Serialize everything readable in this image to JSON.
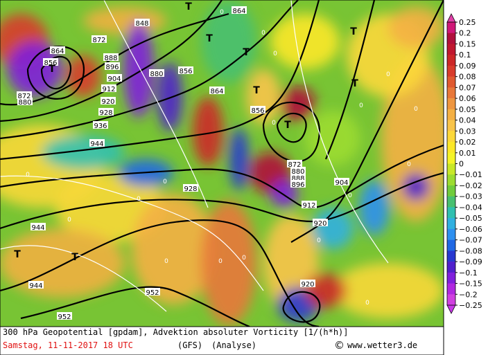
{
  "map": {
    "contour_labels": [
      "848",
      "872",
      "864",
      "856",
      "888",
      "896",
      "904",
      "880",
      "912",
      "920",
      "928",
      "936",
      "944",
      "864",
      "856",
      "872",
      "880",
      "888",
      "896",
      "904",
      "912",
      "920",
      "928",
      "944",
      "944",
      "952",
      "952",
      "920",
      "856",
      "864",
      "880",
      "872"
    ],
    "low_marks": [
      "T",
      "T",
      "T",
      "T",
      "T",
      "T",
      "T",
      "T",
      "T",
      "T"
    ],
    "zero_labels": [
      "0",
      "0",
      "0",
      "0",
      "0",
      "0",
      "0",
      "0",
      "0",
      "0",
      "0",
      "0",
      "0",
      "0",
      "0",
      "0",
      "0",
      "0"
    ]
  },
  "colorbar": {
    "labels": [
      "0.25",
      "0.2",
      "0.15",
      "0.1",
      "0.09",
      "0.08",
      "0.07",
      "0.06",
      "0.05",
      "0.04",
      "0.03",
      "0.02",
      "0.01",
      "0",
      "−0.01",
      "−0.02",
      "−0.03",
      "−0.04",
      "−0.05",
      "−0.06",
      "−0.07",
      "−0.08",
      "−0.09",
      "−0.1",
      "−0.15",
      "−0.2",
      "−0.25"
    ],
    "colors": [
      "#d01878",
      "#b0103c",
      "#c01830",
      "#cc2828",
      "#d83c2c",
      "#e05a30",
      "#e8783a",
      "#ee9640",
      "#f4b044",
      "#f8c44a",
      "#fcd83a",
      "#fce828",
      "#f4f428",
      "#c8e828",
      "#9cdc30",
      "#70cc3c",
      "#48c070",
      "#30c0b0",
      "#30b0e0",
      "#2e90f0",
      "#2068e4",
      "#2838d0",
      "#5020cc",
      "#8020dc",
      "#b028e0",
      "#d040e0"
    ],
    "top_color": "#e040a8",
    "bottom_color": "#c838e8"
  },
  "footer": {
    "caption": "300 hPa Geopotential [gpdam], Advektion absoluter Vorticity [1/(h*h)]",
    "date": "Samstag, 11-11-2017  18 UTC",
    "model": "(GFS)",
    "run": "(Analyse)",
    "copyright_symbol": "©",
    "site": "www.wetter3.de"
  }
}
